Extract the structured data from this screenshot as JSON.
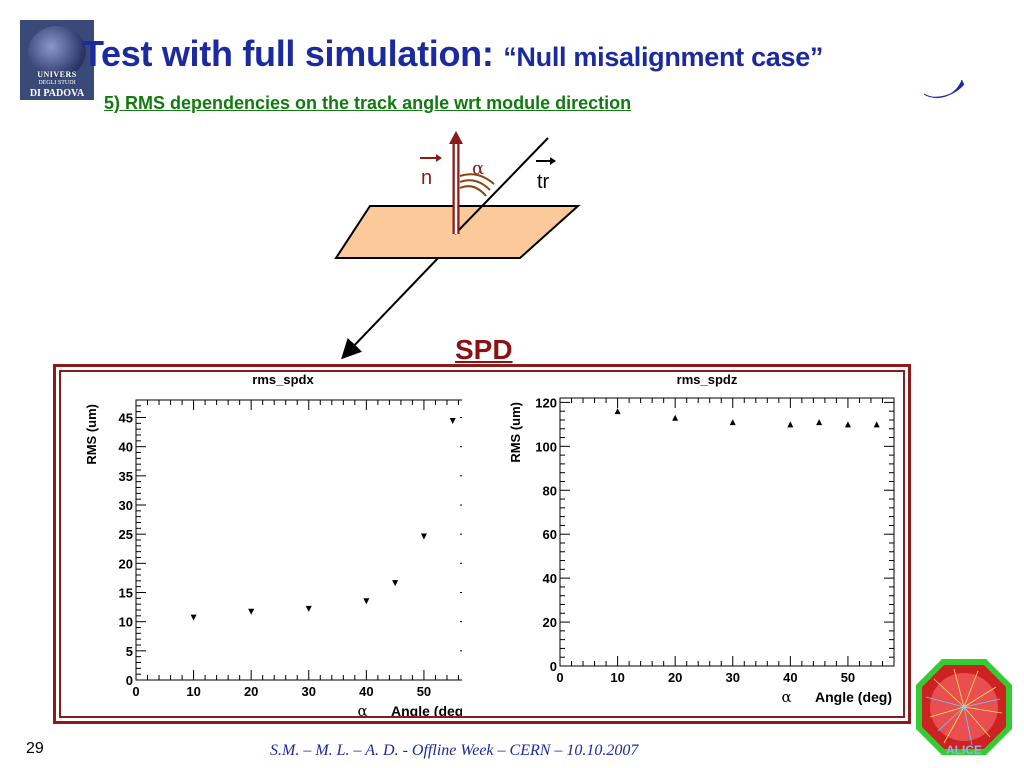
{
  "header": {
    "title": "Test with full simulation:",
    "title_quote": "“Null misalignment case”",
    "subtitle": "5) RMS dependencies on the track angle wrt module direction"
  },
  "logo": {
    "line1": "UNIVERS",
    "line2": "DEGLI STUDI",
    "line3": "DI PADOVA"
  },
  "diagram": {
    "normal_label": "n",
    "angle_label": "α",
    "track_label": "tr",
    "plane_color": "#fcc99b",
    "normal_color": "#8b1a1a",
    "angle_color": "#8b4513"
  },
  "spd_label": "SPD",
  "chart_data": [
    {
      "type": "scatter",
      "title": "rms_spdx",
      "xlabel": "Angle (deg)",
      "xlabel_symbol": "α",
      "ylabel": "RMS (um)",
      "xlim": [
        0,
        58
      ],
      "ylim": [
        0,
        48
      ],
      "xticks": [
        0,
        10,
        20,
        30,
        40,
        50
      ],
      "yticks": [
        0,
        5,
        10,
        15,
        20,
        25,
        30,
        35,
        40,
        45
      ],
      "marker": "triangle-down",
      "x": [
        10,
        20,
        30,
        40,
        45,
        50,
        55
      ],
      "y": [
        10.7,
        11.7,
        12.2,
        13.5,
        16.6,
        24.6,
        44.4
      ]
    },
    {
      "type": "scatter",
      "title": "rms_spdz",
      "xlabel": "Angle (deg)",
      "xlabel_symbol": "α",
      "ylabel": "RMS (um)",
      "xlim": [
        0,
        58
      ],
      "ylim": [
        0,
        122
      ],
      "xticks": [
        0,
        10,
        20,
        30,
        40,
        50
      ],
      "yticks": [
        0,
        20,
        40,
        60,
        80,
        100,
        120
      ],
      "marker": "triangle-up",
      "x": [
        10,
        20,
        30,
        40,
        45,
        50,
        55
      ],
      "y": [
        116,
        113,
        111,
        110,
        111,
        110,
        110
      ]
    }
  ],
  "footer": {
    "page_number": "29",
    "text": "S.M. – M. L. – A. D.   - Offline Week – CERN – 10.10.2007"
  },
  "alice_logo_text": "ALICE"
}
